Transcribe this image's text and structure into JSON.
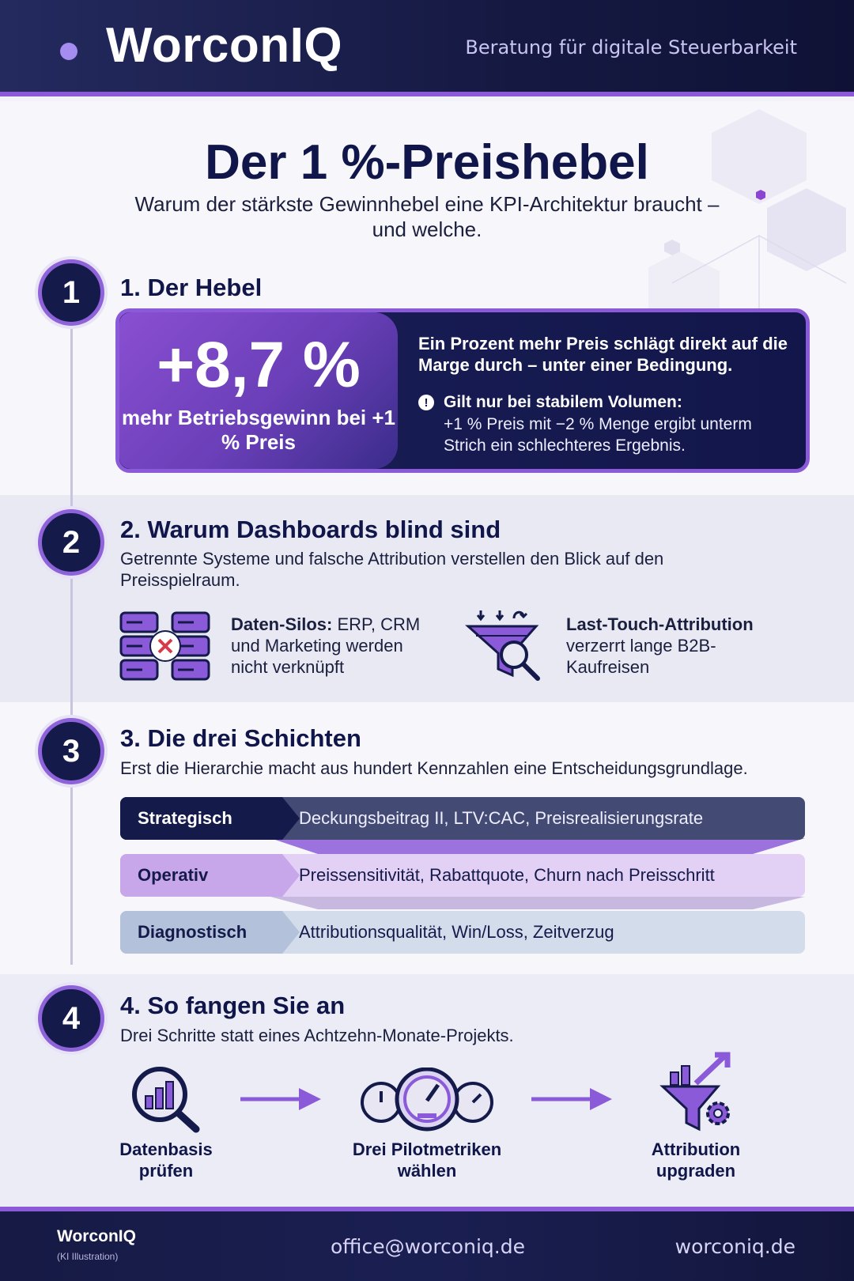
{
  "header": {
    "brand": "WorconIQ",
    "tagline": "Beratung für digitale Steuerbarkeit"
  },
  "hero": {
    "title": "Der 1 %-Preishebel",
    "subtitle": "Warum der stärkste Gewinnhebel eine KPI-Architektur braucht – und welche."
  },
  "sections": [
    {
      "number": "1",
      "title": "1. Der Hebel",
      "big_value": "+8,7 %",
      "big_caption": "mehr Betriebsgewinn bei +1 % Preis",
      "headline": "Ein Prozent mehr Preis schlägt direkt auf die Marge durch – unter einer Bedingung.",
      "warning_title": "Gilt nur bei stabilem Volumen:",
      "warning_text": "+1 % Preis mit −2 % Menge ergibt unterm Strich ein schlechteres Ergebnis."
    },
    {
      "number": "2",
      "title": "2. Warum Dashboards blind sind",
      "subtitle": "Getrennte Systeme und falsche Attribution verstellen den Blick auf den Preisspielraum.",
      "items": [
        {
          "bold": "Daten-Silos:",
          "text": " ERP, CRM und Marketing werden nicht verknüpft",
          "icon": "database-silos-icon"
        },
        {
          "bold": "Last-Touch-Attribution",
          "text": " verzerrt lange B2B-Kaufreisen",
          "icon": "funnel-magnifier-icon"
        }
      ]
    },
    {
      "number": "3",
      "title": "3. Die drei Schichten",
      "subtitle": "Erst die Hierarchie macht aus hundert Kennzahlen eine Entscheidungsgrundlage.",
      "layers": [
        {
          "name": "Strategisch",
          "value": "Deckungsbeitrag II, LTV:CAC, Preisrealisierungsrate"
        },
        {
          "name": "Operativ",
          "value": "Preissensitivität, Rabattquote, Churn nach Preisschritt"
        },
        {
          "name": "Diagnostisch",
          "value": "Attributionsqualität, Win/Loss, Zeitverzug"
        }
      ]
    },
    {
      "number": "4",
      "title": "4. So fangen Sie an",
      "subtitle": "Drei Schritte statt eines Achtzehn-Monate-Projekts.",
      "steps": [
        {
          "label": "Datenbasis prüfen",
          "icon": "chart-magnifier-icon"
        },
        {
          "label": "Drei Pilotmetriken wählen",
          "icon": "gauges-icon"
        },
        {
          "label": "Attribution upgraden",
          "icon": "funnel-gear-icon"
        }
      ]
    }
  ],
  "footer": {
    "brand": "WorconIQ",
    "note": "(KI Illustration)",
    "email": "office@worconiq.de",
    "website": "worconiq.de"
  },
  "colors": {
    "navy": "#141a4a",
    "accent_purple": "#8b5ad8",
    "light_purple": "#dcc6f2",
    "light_blue": "#c9d3e6"
  }
}
